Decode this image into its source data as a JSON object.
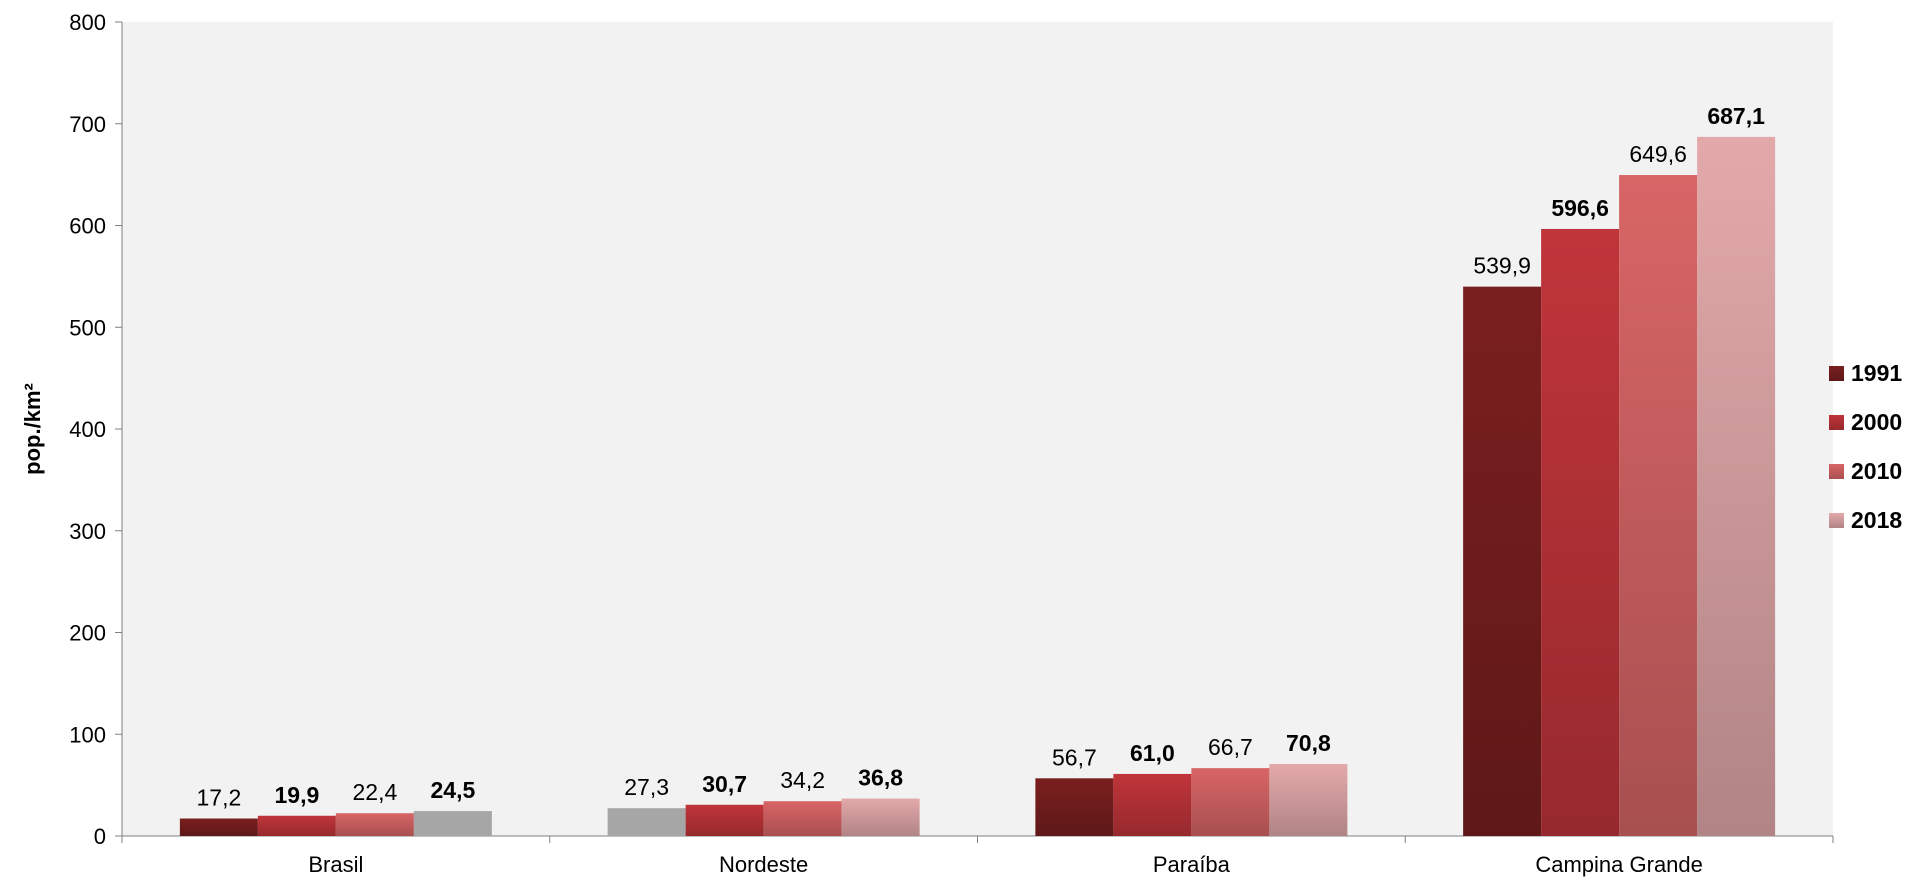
{
  "chart_data": {
    "type": "bar",
    "categories": [
      "Brasil",
      "Nordeste",
      "Paraíba",
      "Campina Grande"
    ],
    "series": [
      {
        "name": "1991",
        "values": [
          17.2,
          27.3,
          56.7,
          539.9
        ],
        "labels": [
          "17,2",
          "27,3",
          "56,7",
          "539,9"
        ],
        "color": "#7a1f1f",
        "bold": false
      },
      {
        "name": "2000",
        "values": [
          19.9,
          30.7,
          61.0,
          596.6
        ],
        "labels": [
          "19,9",
          "30,7",
          "61,0",
          "596,6"
        ],
        "color": "#c0353a",
        "bold": true
      },
      {
        "name": "2010",
        "values": [
          22.4,
          34.2,
          66.7,
          649.6
        ],
        "labels": [
          "22,4",
          "34,2",
          "66,7",
          "649,6"
        ],
        "color": "#d86566",
        "bold": false
      },
      {
        "name": "2018",
        "values": [
          24.5,
          36.8,
          70.8,
          687.1
        ],
        "labels": [
          "24,5",
          "36,8",
          "70,8",
          "687,1"
        ],
        "color": "#e3a9aa",
        "bold": true
      }
    ],
    "highlighted_bars": [
      {
        "category": "Brasil",
        "series": "2018",
        "color": "#a6a6a6"
      },
      {
        "category": "Nordeste",
        "series": "1991",
        "color": "#a6a6a6"
      }
    ],
    "title": "",
    "xlabel": "",
    "ylabel": "pop./km²",
    "ylim": [
      0,
      800
    ],
    "yticks": [
      "0",
      "100",
      "200",
      "300",
      "400",
      "500",
      "600",
      "700",
      "800"
    ],
    "grid": false,
    "legend": "right",
    "plot_background": "#f2f2f2"
  }
}
